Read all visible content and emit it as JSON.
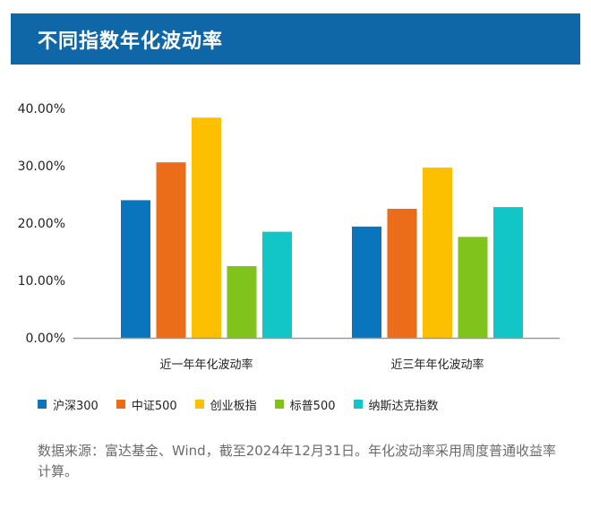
{
  "header": {
    "title": "不同指数年化波动率"
  },
  "chart_data": {
    "type": "bar",
    "categories": [
      "近一年年化波动率",
      "近三年年化波动率"
    ],
    "series": [
      {
        "name": "沪深300",
        "color": "#0a74bd",
        "values": [
          24.0,
          19.4
        ]
      },
      {
        "name": "中证500",
        "color": "#ec6d19",
        "values": [
          30.6,
          22.5
        ]
      },
      {
        "name": "创业板指",
        "color": "#fdc000",
        "values": [
          38.4,
          29.7
        ]
      },
      {
        "name": "标普500",
        "color": "#7fc31c",
        "values": [
          12.5,
          17.6
        ]
      },
      {
        "name": "纳斯达克指数",
        "color": "#12c6c8",
        "values": [
          18.5,
          22.8
        ]
      }
    ],
    "yticks": [
      "0.00%",
      "10.00%",
      "20.00%",
      "30.00%",
      "40.00%"
    ],
    "ylim": [
      0,
      40
    ],
    "grid": false,
    "legend": "bottom-left"
  },
  "source": {
    "text": "数据来源：富达基金、Wind，截至2024年12月31日。年化波动率采用周度普通收益率计算。"
  }
}
